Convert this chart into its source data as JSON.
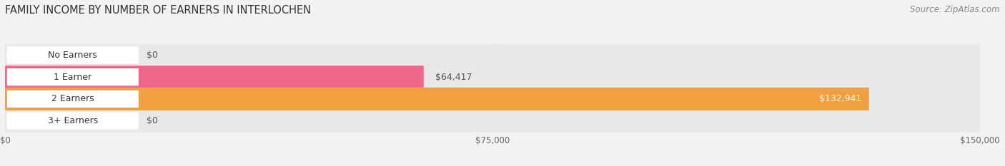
{
  "title": "FAMILY INCOME BY NUMBER OF EARNERS IN INTERLOCHEN",
  "source": "Source: ZipAtlas.com",
  "categories": [
    "No Earners",
    "1 Earner",
    "2 Earners",
    "3+ Earners"
  ],
  "values": [
    0,
    64417,
    132941,
    0
  ],
  "max_value": 150000,
  "bar_colors": [
    "#9999cc",
    "#ee6688",
    "#f0a040",
    "#f0a090"
  ],
  "bar_bg_color": "#e8e8e8",
  "value_labels": [
    "$0",
    "$64,417",
    "$132,941",
    "$0"
  ],
  "value_label_colors": [
    "#555555",
    "#555555",
    "#ffffff",
    "#555555"
  ],
  "x_ticks": [
    0,
    75000,
    150000
  ],
  "x_tick_labels": [
    "$0",
    "$75,000",
    "$150,000"
  ],
  "title_fontsize": 10.5,
  "source_fontsize": 8.5,
  "bar_label_fontsize": 9,
  "value_fontsize": 9,
  "tick_fontsize": 8.5,
  "background_color": "#f2f2f2",
  "bar_height": 0.52
}
